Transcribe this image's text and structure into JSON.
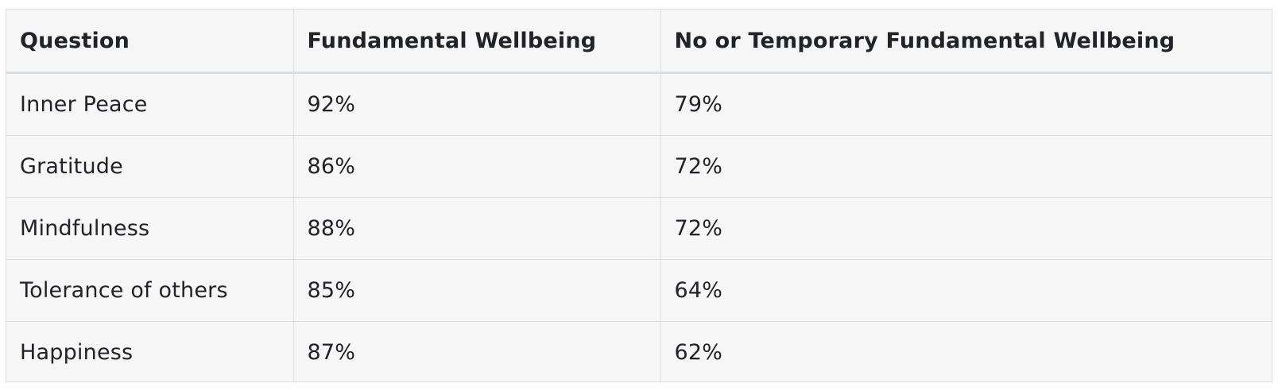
{
  "table": {
    "headers": [
      "Question",
      "Fundamental Wellbeing",
      "No or Temporary Fundamental Wellbeing"
    ],
    "rows": [
      [
        "Inner Peace",
        "92%",
        "79%"
      ],
      [
        "Gratitude",
        "86%",
        "72%"
      ],
      [
        "Mindfulness",
        "88%",
        "72%"
      ],
      [
        "Tolerance of others",
        "85%",
        "64%"
      ],
      [
        "Happiness",
        "87%",
        "62%"
      ]
    ]
  }
}
